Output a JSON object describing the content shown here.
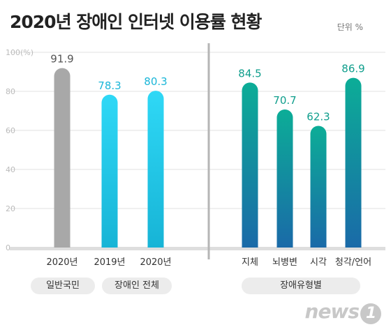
{
  "title": "2020년 장애인 인터넷 이용률 현황",
  "unit_label": "단위 %",
  "group_labels": {
    "general": "일반국민",
    "disabled_total": "장애인 전체",
    "disability_type": "장애유형별"
  },
  "logo": {
    "text": "news",
    "mark": "1"
  },
  "colors": {
    "gray_bar": "#a8a8a8",
    "cyan_top": "#2fd8f6",
    "cyan_bottom": "#17b4d6",
    "teal_top": "#0cad97",
    "teal_bottom": "#1a6aa8",
    "gray_value": "#555555",
    "cyan_value": "#1ab6d8",
    "teal_value": "#0f9e8c",
    "divider": "#b5b5b5",
    "grid": "#e2e2e2",
    "tick": "#bbbbbb"
  },
  "chart_data": {
    "type": "bar",
    "ylim": [
      0,
      100
    ],
    "yticks": [
      0,
      20,
      40,
      60,
      80,
      100
    ],
    "y_top_label": "100(%)",
    "grid": true,
    "categories": [
      "2020년",
      "2019년",
      "2020년",
      "지체",
      "뇌병변",
      "시각",
      "청각/언어"
    ],
    "values": [
      91.9,
      78.3,
      80.3,
      84.5,
      70.7,
      62.3,
      86.9
    ],
    "value_labels": [
      "91.9",
      "78.3",
      "80.3",
      "84.5",
      "70.7",
      "62.3",
      "86.9"
    ],
    "groups": [
      "일반국민",
      "장애인 전체",
      "장애인 전체",
      "장애유형별",
      "장애유형별",
      "장애유형별",
      "장애유형별"
    ]
  }
}
